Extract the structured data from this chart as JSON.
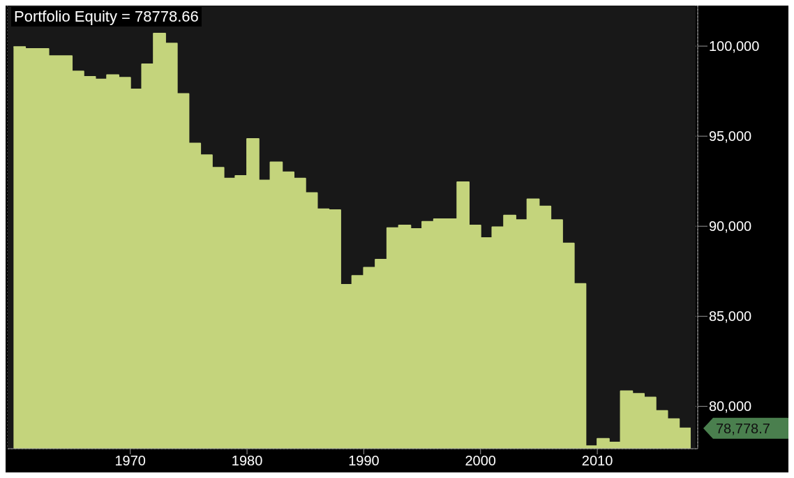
{
  "chart_data": {
    "type": "area",
    "title": "Portfolio Equity = 78778.66",
    "x": [
      1960,
      1961,
      1961,
      1963,
      1963,
      1965,
      1965,
      1966,
      1966,
      1967,
      1967,
      1968,
      1968,
      1969,
      1969,
      1970,
      1970,
      1971,
      1971,
      1972,
      1972,
      1973,
      1973,
      1974,
      1974,
      1975,
      1975,
      1976,
      1976,
      1977,
      1977,
      1978,
      1978,
      1979,
      1979,
      1980,
      1980,
      1981,
      1981,
      1982,
      1982,
      1983,
      1983,
      1984,
      1984,
      1985,
      1985,
      1986,
      1986,
      1987,
      1987,
      1988,
      1988,
      1989,
      1989,
      1990,
      1990,
      1991,
      1991,
      1992,
      1992,
      1993,
      1993,
      1994,
      1994,
      1995,
      1995,
      1996,
      1996,
      1998,
      1998,
      1999,
      1999,
      2000,
      2000,
      2001,
      2001,
      2002,
      2002,
      2003,
      2003,
      2004,
      2004,
      2005,
      2005,
      2006,
      2006,
      2007,
      2007,
      2008,
      2008,
      2009,
      2009,
      2010,
      2010,
      2011,
      2011,
      2012,
      2012,
      2013,
      2013,
      2014,
      2014,
      2015,
      2015,
      2016,
      2016,
      2017,
      2017,
      2018
    ],
    "series": [
      {
        "color": "#c4d47c",
        "values": [
          99950,
          99950,
          99850,
          99850,
          99450,
          99450,
          98600,
          98600,
          98300,
          98300,
          98150,
          98150,
          98400,
          98400,
          98250,
          98250,
          97600,
          97600,
          99000,
          99000,
          100700,
          100700,
          100150,
          100150,
          97350,
          97350,
          94600,
          94600,
          93950,
          93950,
          93250,
          93250,
          92650,
          92650,
          92800,
          92800,
          94850,
          94850,
          92550,
          92550,
          93550,
          93550,
          93000,
          93000,
          92650,
          92650,
          91850,
          91850,
          90950,
          90950,
          90900,
          90900,
          86750,
          86750,
          87250,
          87250,
          87700,
          87700,
          88150,
          88150,
          89900,
          89900,
          90050,
          90050,
          89850,
          89850,
          90250,
          90250,
          90400,
          90400,
          92450,
          92450,
          90050,
          90050,
          89350,
          89350,
          89950,
          89950,
          90600,
          90600,
          90350,
          90350,
          91500,
          91500,
          91100,
          91100,
          90350,
          90350,
          89050,
          89050,
          86800,
          86800,
          77800,
          77800,
          78200,
          78200,
          78000,
          78000,
          80850,
          80850,
          80700,
          80700,
          80500,
          80500,
          79750,
          79750,
          79300,
          79300,
          78778.66,
          78778.66
        ]
      }
    ],
    "xlim": [
      1959.5,
      2018.6
    ],
    "xticks": [
      1970,
      1980,
      1990,
      2000,
      2010
    ],
    "ylim": [
      77650,
      102250
    ],
    "yticks": [
      {
        "value": 80000,
        "label": "80,000"
      },
      {
        "value": 85000,
        "label": "85,000"
      },
      {
        "value": 90000,
        "label": "90,000"
      },
      {
        "value": 95000,
        "label": "95,000"
      },
      {
        "value": 100000,
        "label": "100,000"
      }
    ],
    "grid": true,
    "annotations": [
      "78,778.7"
    ]
  }
}
